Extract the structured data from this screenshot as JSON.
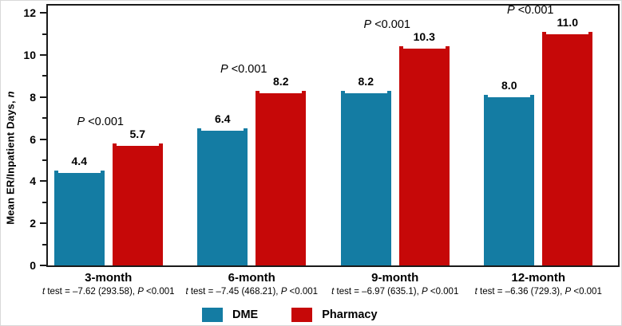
{
  "figure": {
    "ylabel_prefix": "Mean ER/Inpatient Days, ",
    "ylabel_italic": "n"
  },
  "chart_data": {
    "type": "bar",
    "title": "",
    "ylabel": "Mean ER/Inpatient Days, n",
    "ylim": [
      0,
      12.35
    ],
    "yticks_major": [
      0,
      2,
      4,
      6,
      8,
      10,
      12
    ],
    "yticks_minor": [
      1,
      3,
      5,
      7,
      9,
      11
    ],
    "grid": "off",
    "categories": [
      "3-month",
      "6-month",
      "9-month",
      "12-month"
    ],
    "series": [
      {
        "name": "DME",
        "color": "#147CA3",
        "values": [
          4.4,
          6.4,
          8.2,
          8.0
        ],
        "value_labels": [
          "4.4",
          "6.4",
          "8.2",
          "8.0"
        ]
      },
      {
        "name": "Pharmacy",
        "color": "#C60808",
        "values": [
          5.7,
          8.2,
          10.3,
          11.0
        ],
        "value_labels": [
          "5.7",
          "8.2",
          "10.3",
          "11.0"
        ]
      }
    ],
    "pairwise_p_labels": [
      "P <0.001",
      "P <0.001",
      "P <0.001",
      "P <0.001"
    ],
    "t_test_notes": [
      "t test = –7.62 (293.58), P <0.001",
      "t test = –7.45 (468.21), P <0.001",
      "t test = –6.97 (635.1), P <0.001",
      "t test = –6.36 (729.3), P <0.001"
    ],
    "legend": [
      {
        "label": "DME",
        "color": "#147CA3"
      },
      {
        "label": "Pharmacy",
        "color": "#C60808"
      }
    ],
    "legend_position": "bottom",
    "axis_color": "#1a1a1a"
  }
}
